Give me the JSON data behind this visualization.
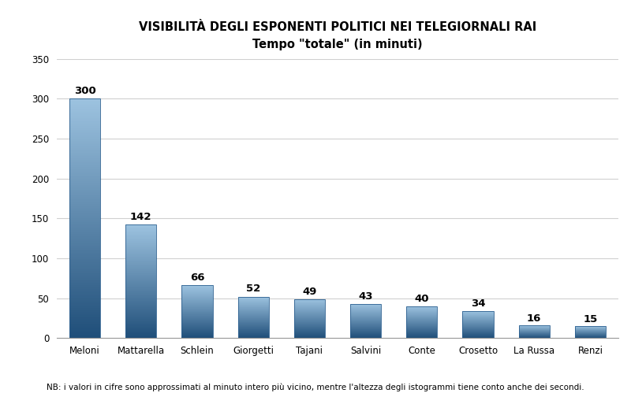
{
  "title_line1": "VISIBILITÀ DEGLI ESPONENTI POLITICI NEI TELEGIORNALI RAI",
  "title_line2": "Tempo \"totale\" (in minuti)",
  "categories": [
    "Meloni",
    "Mattarella",
    "Schlein",
    "Giorgetti",
    "Tajani",
    "Salvini",
    "Conte",
    "Crosetto",
    "La Russa",
    "Renzi"
  ],
  "values": [
    300,
    142,
    66,
    52,
    49,
    43,
    40,
    34,
    16,
    15
  ],
  "bar_color_top": "#9dc3e0",
  "bar_color_bottom": "#1f4e79",
  "ylim": [
    0,
    350
  ],
  "yticks": [
    0,
    50,
    100,
    150,
    200,
    250,
    300,
    350
  ],
  "note": "NB: i valori in cifre sono approssimati al minuto intero più vicino, mentre l'altezza degli istogrammi tiene conto anche dei secondi.",
  "background_color": "#ffffff",
  "grid_color": "#d0d0d0",
  "label_fontsize": 9.5,
  "tick_fontsize": 8.5,
  "note_fontsize": 7.5,
  "title1_fontsize": 10.5,
  "title2_fontsize": 9.5
}
